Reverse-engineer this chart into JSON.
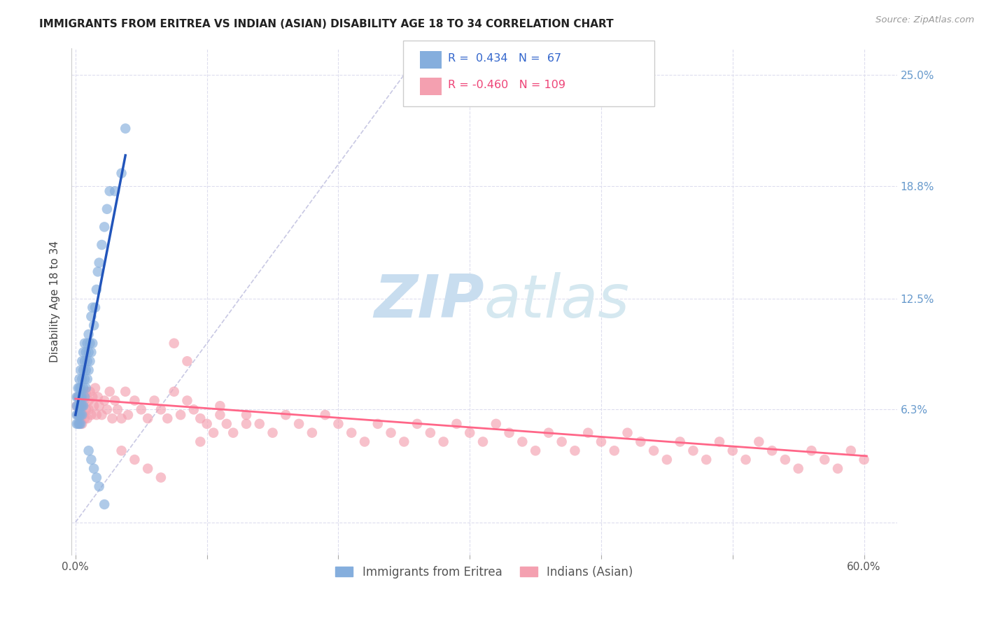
{
  "title": "IMMIGRANTS FROM ERITREA VS INDIAN (ASIAN) DISABILITY AGE 18 TO 34 CORRELATION CHART",
  "source": "Source: ZipAtlas.com",
  "ylabel": "Disability Age 18 to 34",
  "x_tick_positions": [
    0.0,
    0.1,
    0.2,
    0.3,
    0.4,
    0.5,
    0.6
  ],
  "x_tick_labels": [
    "0.0%",
    "",
    "",
    "",
    "",
    "",
    "60.0%"
  ],
  "y_ticks": [
    0.0,
    0.063,
    0.125,
    0.188,
    0.25
  ],
  "y_tick_labels_right": [
    "",
    "6.3%",
    "12.5%",
    "18.8%",
    "25.0%"
  ],
  "xlim": [
    -0.003,
    0.625
  ],
  "ylim": [
    -0.018,
    0.265
  ],
  "legend_label1": "Immigrants from Eritrea",
  "legend_label2": "Indians (Asian)",
  "blue_color": "#85AEDD",
  "pink_color": "#F4A0B0",
  "blue_line_color": "#2255BB",
  "pink_line_color": "#FF6688",
  "diag_color": "#BBBBDD",
  "watermark_color": "#C8DDEF",
  "blue_r": "0.434",
  "blue_n": "67",
  "pink_r": "-0.460",
  "pink_n": "109",
  "blue_scatter_x": [
    0.001,
    0.001,
    0.001,
    0.001,
    0.002,
    0.002,
    0.002,
    0.002,
    0.002,
    0.003,
    0.003,
    0.003,
    0.003,
    0.003,
    0.003,
    0.004,
    0.004,
    0.004,
    0.004,
    0.004,
    0.004,
    0.005,
    0.005,
    0.005,
    0.005,
    0.005,
    0.006,
    0.006,
    0.006,
    0.006,
    0.007,
    0.007,
    0.007,
    0.007,
    0.008,
    0.008,
    0.008,
    0.009,
    0.009,
    0.009,
    0.01,
    0.01,
    0.01,
    0.011,
    0.011,
    0.012,
    0.012,
    0.013,
    0.013,
    0.014,
    0.015,
    0.016,
    0.017,
    0.018,
    0.02,
    0.022,
    0.024,
    0.026,
    0.03,
    0.035,
    0.038,
    0.01,
    0.012,
    0.014,
    0.016,
    0.018,
    0.022
  ],
  "blue_scatter_y": [
    0.06,
    0.055,
    0.065,
    0.07,
    0.055,
    0.06,
    0.065,
    0.07,
    0.075,
    0.055,
    0.06,
    0.065,
    0.07,
    0.075,
    0.08,
    0.055,
    0.06,
    0.065,
    0.07,
    0.075,
    0.085,
    0.06,
    0.065,
    0.07,
    0.08,
    0.09,
    0.065,
    0.075,
    0.085,
    0.095,
    0.07,
    0.08,
    0.09,
    0.1,
    0.075,
    0.085,
    0.095,
    0.08,
    0.09,
    0.1,
    0.085,
    0.095,
    0.105,
    0.09,
    0.1,
    0.095,
    0.115,
    0.1,
    0.12,
    0.11,
    0.12,
    0.13,
    0.14,
    0.145,
    0.155,
    0.165,
    0.175,
    0.185,
    0.185,
    0.195,
    0.22,
    0.04,
    0.035,
    0.03,
    0.025,
    0.02,
    0.01
  ],
  "pink_scatter_x": [
    0.001,
    0.002,
    0.002,
    0.003,
    0.003,
    0.004,
    0.004,
    0.005,
    0.005,
    0.006,
    0.006,
    0.007,
    0.007,
    0.008,
    0.008,
    0.009,
    0.01,
    0.01,
    0.011,
    0.012,
    0.013,
    0.014,
    0.015,
    0.016,
    0.017,
    0.018,
    0.02,
    0.022,
    0.024,
    0.026,
    0.028,
    0.03,
    0.032,
    0.035,
    0.038,
    0.04,
    0.045,
    0.05,
    0.055,
    0.06,
    0.065,
    0.07,
    0.075,
    0.08,
    0.085,
    0.09,
    0.095,
    0.1,
    0.105,
    0.11,
    0.115,
    0.12,
    0.13,
    0.14,
    0.15,
    0.16,
    0.17,
    0.18,
    0.19,
    0.2,
    0.21,
    0.22,
    0.23,
    0.24,
    0.25,
    0.26,
    0.27,
    0.28,
    0.29,
    0.3,
    0.31,
    0.32,
    0.33,
    0.34,
    0.35,
    0.36,
    0.37,
    0.38,
    0.39,
    0.4,
    0.41,
    0.42,
    0.43,
    0.44,
    0.45,
    0.46,
    0.47,
    0.48,
    0.49,
    0.5,
    0.51,
    0.52,
    0.53,
    0.54,
    0.55,
    0.56,
    0.57,
    0.58,
    0.59,
    0.6,
    0.035,
    0.045,
    0.055,
    0.065,
    0.075,
    0.085,
    0.095,
    0.11,
    0.13
  ],
  "pink_scatter_y": [
    0.065,
    0.06,
    0.07,
    0.055,
    0.065,
    0.06,
    0.07,
    0.055,
    0.065,
    0.06,
    0.072,
    0.058,
    0.068,
    0.063,
    0.073,
    0.058,
    0.068,
    0.063,
    0.073,
    0.06,
    0.07,
    0.065,
    0.075,
    0.06,
    0.07,
    0.065,
    0.06,
    0.068,
    0.063,
    0.073,
    0.058,
    0.068,
    0.063,
    0.058,
    0.073,
    0.06,
    0.068,
    0.063,
    0.058,
    0.068,
    0.063,
    0.058,
    0.073,
    0.06,
    0.068,
    0.063,
    0.058,
    0.055,
    0.05,
    0.06,
    0.055,
    0.05,
    0.06,
    0.055,
    0.05,
    0.06,
    0.055,
    0.05,
    0.06,
    0.055,
    0.05,
    0.045,
    0.055,
    0.05,
    0.045,
    0.055,
    0.05,
    0.045,
    0.055,
    0.05,
    0.045,
    0.055,
    0.05,
    0.045,
    0.04,
    0.05,
    0.045,
    0.04,
    0.05,
    0.045,
    0.04,
    0.05,
    0.045,
    0.04,
    0.035,
    0.045,
    0.04,
    0.035,
    0.045,
    0.04,
    0.035,
    0.045,
    0.04,
    0.035,
    0.03,
    0.04,
    0.035,
    0.03,
    0.04,
    0.035,
    0.04,
    0.035,
    0.03,
    0.025,
    0.1,
    0.09,
    0.045,
    0.065,
    0.055
  ]
}
